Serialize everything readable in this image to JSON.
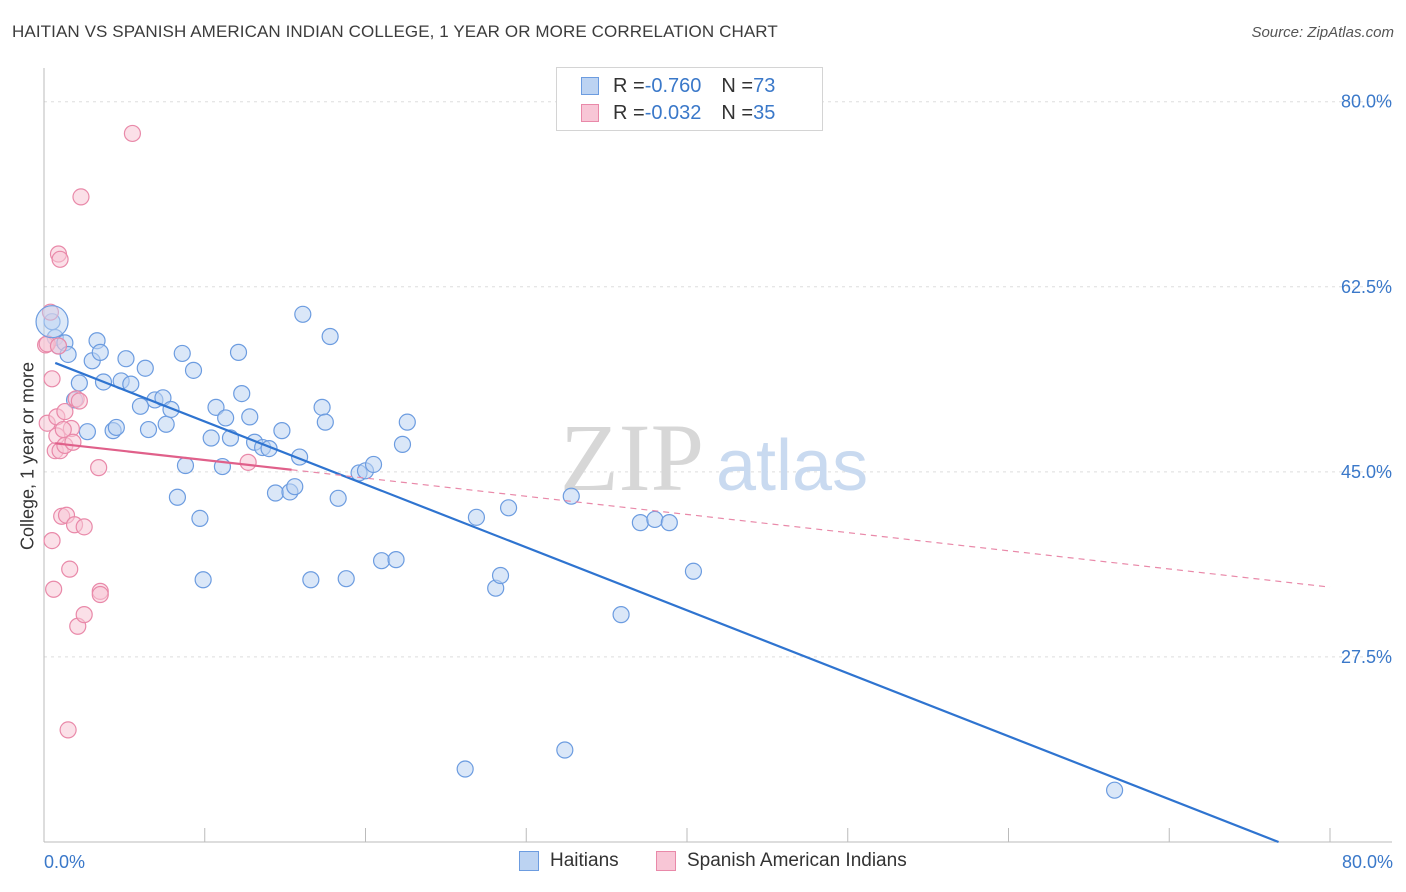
{
  "title": "HAITIAN VS SPANISH AMERICAN INDIAN COLLEGE, 1 YEAR OR MORE CORRELATION CHART",
  "source": "Source: ZipAtlas.com",
  "watermark": {
    "zip": "ZIP",
    "atlas": "atlas"
  },
  "legend": [
    {
      "r_label": "R = ",
      "r_value": "-0.760",
      "n_label": "N = ",
      "n_value": "73",
      "swatch_fill": "#bcd3f2",
      "swatch_stroke": "#6c9ce0"
    },
    {
      "r_label": "R = ",
      "r_value": "-0.032",
      "n_label": "N = ",
      "n_value": "35",
      "swatch_fill": "#f8c6d6",
      "swatch_stroke": "#e989a9"
    }
  ],
  "chart_data": {
    "type": "scatter",
    "title": "HAITIAN VS SPANISH AMERICAN INDIAN COLLEGE, 1 YEAR OR MORE CORRELATION CHART",
    "xlabel": "",
    "ylabel": "College, 1 year or more",
    "xlim": [
      0,
      80
    ],
    "ylim": [
      10,
      83
    ],
    "x_tick_labels": [
      "0.0%",
      "80.0%"
    ],
    "y_ticks": [
      27.5,
      45.0,
      62.5,
      80.0
    ],
    "y_tick_labels": [
      "27.5%",
      "45.0%",
      "62.5%",
      "80.0%"
    ],
    "series": [
      {
        "name": "Haitians",
        "color": "#6c9ce0",
        "fill": "#bcd3f2",
        "trend": {
          "x0": 0.7,
          "y0": 55.3,
          "x1": 76.8,
          "y1": 10.0,
          "style": "solid"
        },
        "points": [
          [
            0.5,
            59.2
          ],
          [
            0.7,
            57.7
          ],
          [
            0.9,
            56.9
          ],
          [
            1.3,
            57.2
          ],
          [
            1.5,
            56.1
          ],
          [
            1.9,
            51.8
          ],
          [
            2.2,
            53.4
          ],
          [
            2.7,
            48.8
          ],
          [
            3.0,
            55.5
          ],
          [
            3.3,
            57.4
          ],
          [
            3.5,
            56.3
          ],
          [
            3.7,
            53.5
          ],
          [
            4.3,
            48.9
          ],
          [
            4.5,
            49.2
          ],
          [
            4.8,
            53.6
          ],
          [
            5.1,
            55.7
          ],
          [
            5.4,
            53.3
          ],
          [
            6.0,
            51.2
          ],
          [
            6.3,
            54.8
          ],
          [
            6.5,
            49.0
          ],
          [
            6.9,
            51.8
          ],
          [
            7.4,
            52.0
          ],
          [
            7.6,
            49.5
          ],
          [
            7.9,
            50.9
          ],
          [
            8.3,
            42.6
          ],
          [
            8.6,
            56.2
          ],
          [
            8.8,
            45.6
          ],
          [
            9.3,
            54.6
          ],
          [
            9.7,
            40.6
          ],
          [
            9.9,
            34.8
          ],
          [
            10.4,
            48.2
          ],
          [
            10.7,
            51.1
          ],
          [
            11.1,
            45.5
          ],
          [
            11.3,
            50.1
          ],
          [
            11.6,
            48.2
          ],
          [
            12.1,
            56.3
          ],
          [
            12.3,
            52.4
          ],
          [
            12.8,
            50.2
          ],
          [
            13.1,
            47.8
          ],
          [
            13.6,
            47.3
          ],
          [
            14.0,
            47.2
          ],
          [
            14.4,
            43.0
          ],
          [
            14.8,
            48.9
          ],
          [
            15.3,
            43.1
          ],
          [
            15.6,
            43.6
          ],
          [
            15.9,
            46.4
          ],
          [
            16.1,
            59.9
          ],
          [
            16.6,
            34.8
          ],
          [
            17.3,
            51.1
          ],
          [
            17.5,
            49.7
          ],
          [
            17.8,
            57.8
          ],
          [
            18.3,
            42.5
          ],
          [
            18.8,
            34.9
          ],
          [
            19.6,
            44.9
          ],
          [
            20.0,
            45.1
          ],
          [
            20.5,
            45.7
          ],
          [
            21.0,
            36.6
          ],
          [
            21.9,
            36.7
          ],
          [
            22.3,
            47.6
          ],
          [
            22.6,
            49.7
          ],
          [
            26.2,
            16.9
          ],
          [
            26.9,
            40.7
          ],
          [
            28.1,
            34.0
          ],
          [
            28.4,
            35.2
          ],
          [
            28.9,
            41.6
          ],
          [
            32.4,
            18.7
          ],
          [
            32.8,
            42.7
          ],
          [
            35.9,
            31.5
          ],
          [
            37.1,
            40.2
          ],
          [
            38.0,
            40.5
          ],
          [
            38.9,
            40.2
          ],
          [
            40.4,
            35.6
          ],
          [
            66.6,
            14.9
          ]
        ]
      },
      {
        "name": "Spanish American Indians",
        "color": "#e989a9",
        "fill": "#f8c6d6",
        "trend": {
          "x0": 0.7,
          "y0": 47.7,
          "x1": 15.4,
          "y1": 45.2,
          "style": "solid",
          "ext_x1": 80.0,
          "ext_y1": 34.1,
          "ext_style": "dashed"
        },
        "points": [
          [
            0.1,
            57.0
          ],
          [
            0.2,
            49.6
          ],
          [
            0.4,
            60.1
          ],
          [
            0.5,
            53.8
          ],
          [
            0.5,
            38.5
          ],
          [
            0.6,
            33.9
          ],
          [
            0.7,
            47.0
          ],
          [
            0.8,
            50.2
          ],
          [
            0.8,
            48.4
          ],
          [
            0.9,
            65.6
          ],
          [
            1.0,
            47.0
          ],
          [
            1.0,
            65.1
          ],
          [
            1.1,
            40.8
          ],
          [
            1.3,
            47.5
          ],
          [
            1.3,
            50.7
          ],
          [
            1.4,
            40.9
          ],
          [
            1.5,
            20.6
          ],
          [
            1.6,
            35.8
          ],
          [
            1.7,
            49.1
          ],
          [
            1.8,
            47.8
          ],
          [
            1.9,
            40.0
          ],
          [
            2.0,
            51.9
          ],
          [
            2.1,
            30.4
          ],
          [
            2.2,
            51.7
          ],
          [
            2.3,
            71.0
          ],
          [
            2.5,
            31.5
          ],
          [
            2.5,
            39.8
          ],
          [
            3.4,
            45.4
          ],
          [
            3.5,
            33.7
          ],
          [
            3.5,
            33.4
          ],
          [
            5.5,
            77.0
          ],
          [
            12.7,
            45.9
          ],
          [
            0.2,
            57.1
          ],
          [
            0.9,
            56.9
          ],
          [
            1.2,
            49.0
          ]
        ]
      }
    ]
  }
}
